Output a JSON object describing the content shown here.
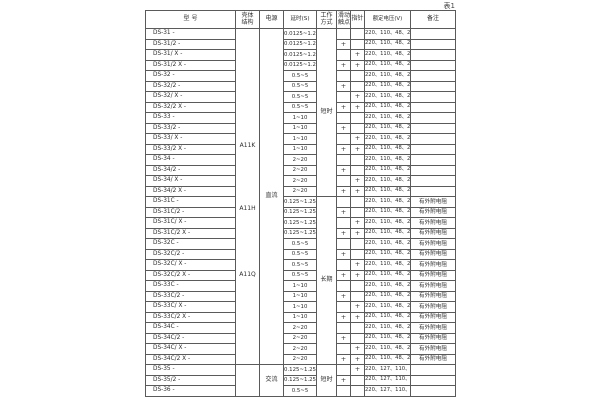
{
  "table_note": "表1",
  "accent_colors": {
    "border": "#5a5a5a",
    "text": "#2e2e2e",
    "background": "#ffffff"
  },
  "table": {
    "headers": {
      "model": "型 号",
      "case": "壳体结构",
      "power": "电源",
      "delay": "延时(S)",
      "work_mode": "工作方式",
      "sliding_contact": "滑动触点",
      "pointer": "指针",
      "voltage": "额定电压(V)",
      "remark": "备注"
    },
    "case_column_groups": [
      {
        "start": 0,
        "span": 32,
        "labels": [
          "A11K",
          "A11H",
          "A11Q"
        ]
      },
      {
        "start": 32,
        "span": 3,
        "labels": []
      }
    ],
    "power_column_groups": [
      {
        "start": 0,
        "span": 32,
        "label": "直流"
      },
      {
        "start": 32,
        "span": 3,
        "label": "交流"
      }
    ],
    "work_mode_column_groups": [
      {
        "start": 0,
        "span": 16,
        "label": "短时"
      },
      {
        "start": 16,
        "span": 16,
        "label": "长期"
      },
      {
        "start": 32,
        "span": 3,
        "label": "短时"
      }
    ],
    "rows": [
      {
        "model": "DS-31 -",
        "delay": "0.0125~1.25",
        "slide": "",
        "pointer": "",
        "voltage": "220、110、48、24",
        "remark": ""
      },
      {
        "model": "DS-31/2 -",
        "delay": "0.0125~1.25",
        "slide": "+",
        "pointer": "",
        "voltage": "220、110、48、24",
        "remark": ""
      },
      {
        "model": "DS-31/ X -",
        "delay": "0.0125~1.25",
        "slide": "",
        "pointer": "+",
        "voltage": "220、110、48、24",
        "remark": ""
      },
      {
        "model": "DS-31/2 X -",
        "delay": "0.0125~1.25",
        "slide": "+",
        "pointer": "+",
        "voltage": "220、110、48、24",
        "remark": ""
      },
      {
        "model": "DS-32 -",
        "delay": "0.5~5",
        "slide": "",
        "pointer": "",
        "voltage": "220、110、48、24",
        "remark": ""
      },
      {
        "model": "DS-32/2 -",
        "delay": "0.5~5",
        "slide": "+",
        "pointer": "",
        "voltage": "220、110、48、24",
        "remark": ""
      },
      {
        "model": "DS-32/ X -",
        "delay": "0.5~5",
        "slide": "",
        "pointer": "+",
        "voltage": "220、110、48、24",
        "remark": ""
      },
      {
        "model": "DS-32/2 X -",
        "delay": "0.5~5",
        "slide": "+",
        "pointer": "+",
        "voltage": "220、110、48、24",
        "remark": ""
      },
      {
        "model": "DS-33 -",
        "delay": "1~10",
        "slide": "",
        "pointer": "",
        "voltage": "220、110、48、24",
        "remark": ""
      },
      {
        "model": "DS-33/2 -",
        "delay": "1~10",
        "slide": "+",
        "pointer": "",
        "voltage": "220、110、48、24",
        "remark": ""
      },
      {
        "model": "DS-33/ X -",
        "delay": "1~10",
        "slide": "",
        "pointer": "+",
        "voltage": "220、110、48、24",
        "remark": ""
      },
      {
        "model": "DS-33/2 X -",
        "delay": "1~10",
        "slide": "+",
        "pointer": "+",
        "voltage": "220、110、48、24",
        "remark": ""
      },
      {
        "model": "DS-34 -",
        "delay": "2~20",
        "slide": "",
        "pointer": "",
        "voltage": "220、110、48、24",
        "remark": ""
      },
      {
        "model": "DS-34/2 -",
        "delay": "2~20",
        "slide": "+",
        "pointer": "",
        "voltage": "220、110、48、24",
        "remark": ""
      },
      {
        "model": "DS-34/ X -",
        "delay": "2~20",
        "slide": "",
        "pointer": "+",
        "voltage": "220、110、48、24",
        "remark": ""
      },
      {
        "model": "DS-34/2 X -",
        "delay": "2~20",
        "slide": "+",
        "pointer": "+",
        "voltage": "220、110、48、24",
        "remark": ""
      },
      {
        "model": "DS-31C -",
        "delay": "0.125~1.25",
        "slide": "",
        "pointer": "",
        "voltage": "220、110、48、24",
        "remark": "有外附电阻"
      },
      {
        "model": "DS-31C/2 -",
        "delay": "0.125~1.25",
        "slide": "+",
        "pointer": "",
        "voltage": "220、110、48、24",
        "remark": "有外附电阻"
      },
      {
        "model": "DS-31C/ X -",
        "delay": "0.125~1.25",
        "slide": "",
        "pointer": "+",
        "voltage": "220、110、48、24",
        "remark": "有外附电阻"
      },
      {
        "model": "DS-31C/2 X -",
        "delay": "0.125~1.25",
        "slide": "+",
        "pointer": "+",
        "voltage": "220、110、48、24",
        "remark": "有外附电阻"
      },
      {
        "model": "DS-32C -",
        "delay": "0.5~5",
        "slide": "",
        "pointer": "",
        "voltage": "220、110、48、24",
        "remark": "有外附电阻"
      },
      {
        "model": "DS-32C/2 -",
        "delay": "0.5~5",
        "slide": "+",
        "pointer": "",
        "voltage": "220、110、48、24",
        "remark": "有外附电阻"
      },
      {
        "model": "DS-32C/ X -",
        "delay": "0.5~5",
        "slide": "",
        "pointer": "+",
        "voltage": "220、110、48、24",
        "remark": "有外附电阻"
      },
      {
        "model": "DS-32C/2 X -",
        "delay": "0.5~5",
        "slide": "+",
        "pointer": "+",
        "voltage": "220、110、48、24",
        "remark": "有外附电阻"
      },
      {
        "model": "DS-33C -",
        "delay": "1~10",
        "slide": "",
        "pointer": "",
        "voltage": "220、110、48、24",
        "remark": "有外附电阻"
      },
      {
        "model": "DS-33C/2 -",
        "delay": "1~10",
        "slide": "+",
        "pointer": "",
        "voltage": "220、110、48、24",
        "remark": "有外附电阻"
      },
      {
        "model": "DS-33C/ X -",
        "delay": "1~10",
        "slide": "",
        "pointer": "+",
        "voltage": "220、110、48、24",
        "remark": "有外附电阻"
      },
      {
        "model": "DS-33C/2 X -",
        "delay": "1~10",
        "slide": "+",
        "pointer": "+",
        "voltage": "220、110、48、24",
        "remark": "有外附电阻"
      },
      {
        "model": "DS-34C -",
        "delay": "2~20",
        "slide": "",
        "pointer": "",
        "voltage": "220、110、48、24",
        "remark": "有外附电阻"
      },
      {
        "model": "DS-34C/2 -",
        "delay": "2~20",
        "slide": "+",
        "pointer": "",
        "voltage": "220、110、48、24",
        "remark": "有外附电阻"
      },
      {
        "model": "DS-34C/ X -",
        "delay": "2~20",
        "slide": "",
        "pointer": "+",
        "voltage": "220、110、48、24",
        "remark": "有外附电阻"
      },
      {
        "model": "DS-34C/2 X -",
        "delay": "2~20",
        "slide": "+",
        "pointer": "+",
        "voltage": "220、110、48、24",
        "remark": "有外附电阻"
      },
      {
        "model": "DS-35 -",
        "delay": "0.125~1.25",
        "slide": "",
        "pointer": "+",
        "voltage": "220、127、110、100",
        "remark": ""
      },
      {
        "model": "DS-35/2 -",
        "delay": "0.125~1.25",
        "slide": "+",
        "pointer": "",
        "voltage": "220、127、110、100",
        "remark": ""
      },
      {
        "model": "DS-36 -",
        "delay": "0.5~5",
        "slide": "",
        "pointer": "",
        "voltage": "220、127、110、100",
        "remark": ""
      }
    ]
  }
}
